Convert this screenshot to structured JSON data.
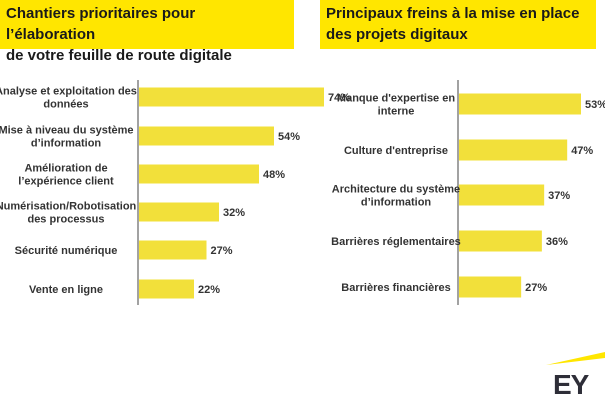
{
  "chart_data": [
    {
      "type": "bar",
      "orientation": "horizontal",
      "title_lines": [
        "Chantiers prioritaires pour l’élaboration",
        "de votre feuille de route digitale"
      ],
      "categories": [
        [
          "Analyse et exploitation des",
          "données"
        ],
        [
          "Mise à niveau du système",
          "d’information"
        ],
        [
          "Amélioration de",
          "l’expérience client"
        ],
        [
          "Numérisation/Robotisation",
          "des processus"
        ],
        [
          "Sécurité numérique"
        ],
        [
          "Vente en ligne"
        ]
      ],
      "values": [
        74,
        54,
        48,
        32,
        27,
        22
      ],
      "value_labels": [
        "74%",
        "54%",
        "48%",
        "32%",
        "27%",
        "22%"
      ],
      "xlim": [
        0,
        80
      ],
      "color": "#f2e03a",
      "grid": false
    },
    {
      "type": "bar",
      "orientation": "horizontal",
      "title_lines": [
        "Principaux freins à la mise en place",
        "des projets digitaux"
      ],
      "categories": [
        [
          "Manque d'expertise en",
          "interne"
        ],
        [
          "Culture d'entreprise"
        ],
        [
          "Architecture du système",
          "d’information"
        ],
        [
          "Barrières réglementaires"
        ],
        [
          "Barrières financières"
        ]
      ],
      "values": [
        53,
        47,
        37,
        36,
        27
      ],
      "value_labels": [
        "53%",
        "47%",
        "37%",
        "36%",
        "27%"
      ],
      "xlim": [
        0,
        58
      ],
      "color": "#f2e03a",
      "grid": false
    }
  ],
  "logo": {
    "text": "EY",
    "accent_color": "#ffe600",
    "text_color": "#2e2e38"
  }
}
